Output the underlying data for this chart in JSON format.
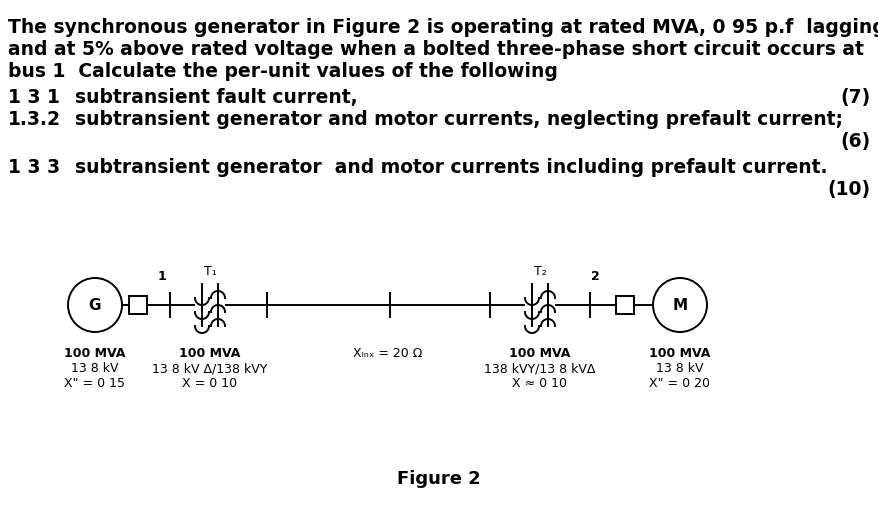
{
  "bg_color": "#ffffff",
  "text_color": "#000000",
  "title_line1": "The synchronous generator in Figure 2 is operating at rated MVA, 0 95 p.f  lagging",
  "title_line2": "and at 5% above rated voltage when a bolted three-phase short circuit occurs at",
  "title_line3": "bus 1  Calculate the per-unit values of the following",
  "q1_num": "1 3 1",
  "q1_text": "subtransient fault current,",
  "q1_mark": "(7)",
  "q2_num": "1.3.2",
  "q2_text": "subtransient generator and motor currents, neglecting prefault current;",
  "q2_mark": "(6)",
  "q3_num": "1 3 3",
  "q3_text": "subtransient generator  and motor currents including prefault current.",
  "q3_mark": "(10)",
  "fig_label": "Figure 2",
  "gen_label": "G",
  "motor_label": "M",
  "bus1_label": "1",
  "bus2_label": "2",
  "T1_label": "T₁",
  "T2_label": "T₂",
  "line_label": "Xₗₙₓ = 20 Ω",
  "gen_specs": [
    "100 MVA",
    "13 8 kV",
    "X\" = 0 15"
  ],
  "T1_specs": [
    "100 MVA",
    "13 8 kV Δ/138 kVY",
    "X = 0 10"
  ],
  "T2_specs": [
    "100 MVA",
    "138 kVY/13 8 kVΔ",
    "X ≈ 0 10"
  ],
  "motor_specs": [
    "100 MVA",
    "13 8 kV",
    "X\" = 0 20"
  ]
}
